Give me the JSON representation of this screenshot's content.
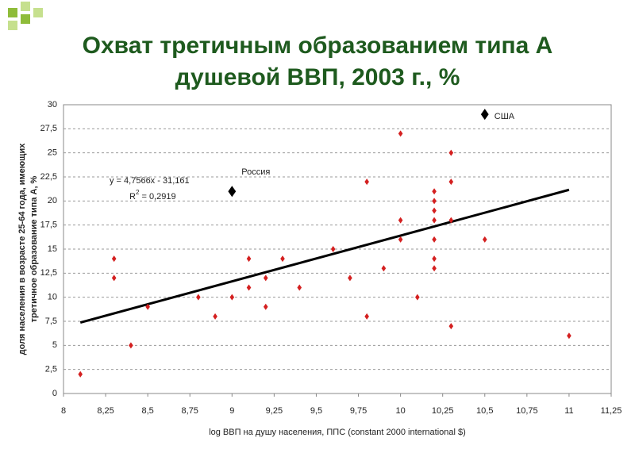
{
  "chart_data": {
    "type": "scatter",
    "title": [
      "Охват третичным образованием типа А",
      "душевой ВВП, 2003 г., %"
    ],
    "x_label": "log ВВП на душу населения, ППС (constant 2000 international $)",
    "y_label": [
      "доля населения в возрасте 25-64 года, имеющих",
      "третичное образование типа А, %"
    ],
    "xlim": [
      8,
      11.25
    ],
    "ylim": [
      0,
      30
    ],
    "xticks": [
      8,
      {
        "value": 8.25,
        "label": "8,25"
      },
      {
        "value": 8.5,
        "label": "8,5"
      },
      {
        "value": 8.75,
        "label": "8,75"
      },
      9,
      {
        "value": 9.25,
        "label": "9,25"
      },
      {
        "value": 9.5,
        "label": "9,5"
      },
      {
        "value": 9.75,
        "label": "9,75"
      },
      10,
      {
        "value": 10.25,
        "label": "10,25"
      },
      {
        "value": 10.5,
        "label": "10,5"
      },
      {
        "value": 10.75,
        "label": "10,75"
      },
      11,
      {
        "value": 11.25,
        "label": "11,25"
      }
    ],
    "yticks": [
      0,
      {
        "value": 2.5,
        "label": "2,5"
      },
      5,
      {
        "value": 7.5,
        "label": "7,5"
      },
      10,
      {
        "value": 12.5,
        "label": "12,5"
      },
      15,
      {
        "value": 17.5,
        "label": "17,5"
      },
      20,
      {
        "value": 22.5,
        "label": "22,5"
      },
      25,
      {
        "value": 27.5,
        "label": "27,5"
      },
      30
    ],
    "grid": true,
    "points": {
      "color": "#d42020",
      "x": [
        8.1,
        8.3,
        8.3,
        8.4,
        8.5,
        8.8,
        8.9,
        9.0,
        9.1,
        9.1,
        9.2,
        9.2,
        9.3,
        9.4,
        9.6,
        9.7,
        9.8,
        9.8,
        9.9,
        10.0,
        10.0,
        10.0,
        10.1,
        10.2,
        10.2,
        10.2,
        10.2,
        10.2,
        10.2,
        10.2,
        10.3,
        10.3,
        10.3,
        10.3,
        10.5,
        11.0
      ],
      "values": [
        2,
        14,
        12,
        5,
        9,
        10,
        8,
        10,
        14,
        11,
        12,
        9,
        14,
        11,
        15,
        12,
        22,
        8,
        13,
        27,
        18,
        16,
        10,
        21,
        20,
        19,
        18,
        16,
        14,
        13,
        25,
        22,
        18,
        7,
        16,
        6
      ]
    },
    "highlights": {
      "color": "#000000",
      "labels": [
        "Россия",
        "США"
      ],
      "x": [
        9.0,
        10.5
      ],
      "values": [
        21,
        29
      ]
    },
    "trendline": {
      "color": "#000000",
      "x": [
        8.1,
        11.0
      ],
      "values": [
        7.37,
        21.16
      ],
      "equation": "y = 4,7566x - 31,161",
      "r2_base": "R",
      "r2_power": "2",
      "r2_value": " = 0,2919"
    }
  }
}
